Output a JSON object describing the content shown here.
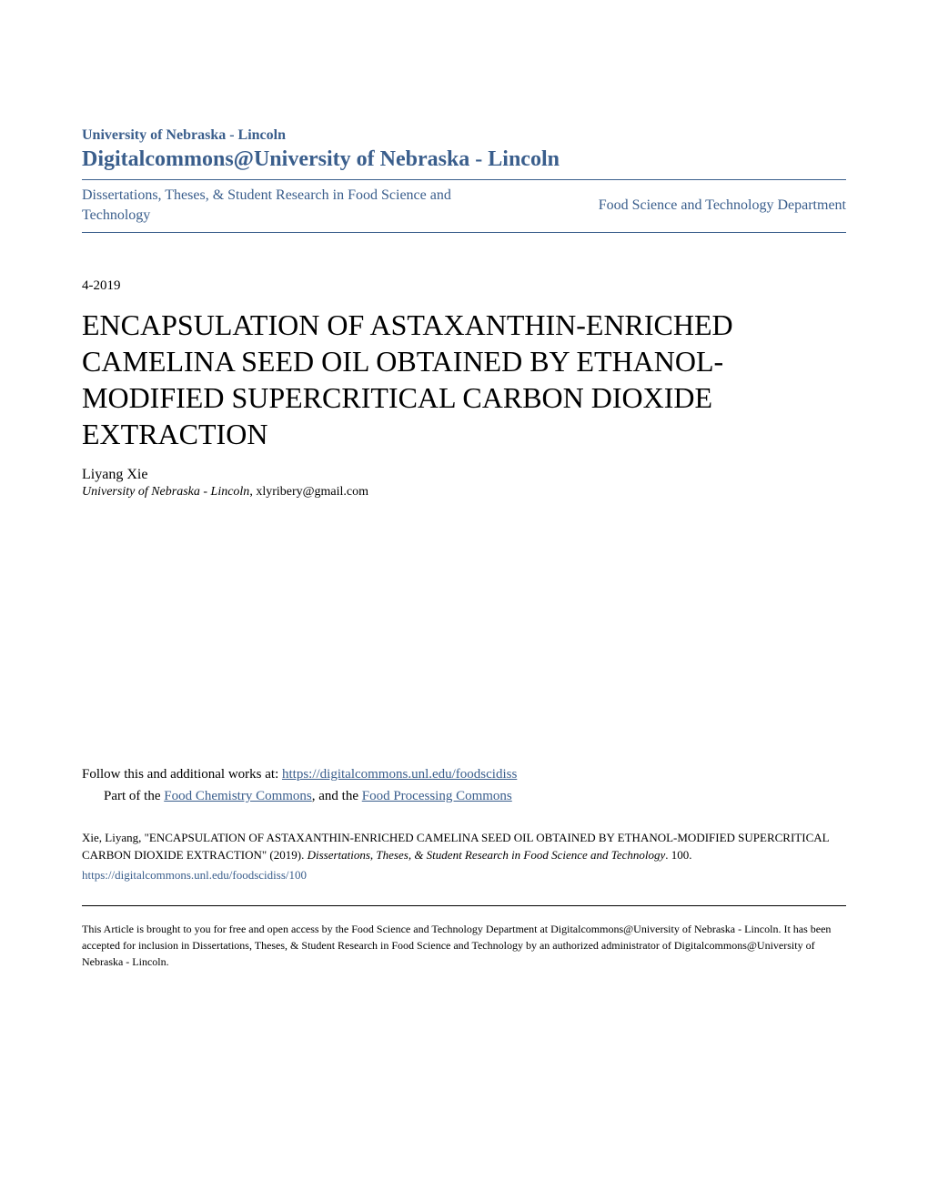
{
  "header": {
    "university": "University of Nebraska - Lincoln",
    "repository": "Digitalcommons@University of Nebraska - Lincoln",
    "collection_left": "Dissertations, Theses, & Student Research in Food Science and Technology",
    "collection_right": "Food Science and Technology Department"
  },
  "date": "4-2019",
  "title": "ENCAPSULATION OF ASTAXANTHIN-ENRICHED CAMELINA SEED OIL OBTAINED BY ETHANOL-MODIFIED SUPERCRITICAL CARBON DIOXIDE EXTRACTION",
  "author": {
    "name": "Liyang Xie",
    "affiliation": "University of Nebraska - Lincoln",
    "email": "xlyribery@gmail.com"
  },
  "follow": {
    "intro": "Follow this and additional works at: ",
    "main_link": "https://digitalcommons.unl.edu/foodscidiss",
    "part_intro": "Part of the ",
    "commons_link1": "Food Chemistry Commons",
    "separator": ", and the ",
    "commons_link2": "Food Processing Commons"
  },
  "citation": {
    "author": "Xie, Liyang, ",
    "title_quoted": "\"ENCAPSULATION OF ASTAXANTHIN-ENRICHED CAMELINA SEED OIL OBTAINED BY ETHANOL-MODIFIED SUPERCRITICAL CARBON DIOXIDE EXTRACTION\" (2019). ",
    "series": "Dissertations, Theses, & Student Research in Food Science and Technology",
    "number": ". 100.",
    "url": "https://digitalcommons.unl.edu/foodscidiss/100"
  },
  "disclaimer": "This Article is brought to you for free and open access by the Food Science and Technology Department at Digitalcommons@University of Nebraska - Lincoln. It has been accepted for inclusion in Dissertations, Theses, & Student Research in Food Science and Technology by an authorized administrator of Digitalcommons@University of Nebraska - Lincoln.",
  "colors": {
    "link_color": "#3a5e8c",
    "text_color": "#000000",
    "background": "#ffffff"
  }
}
